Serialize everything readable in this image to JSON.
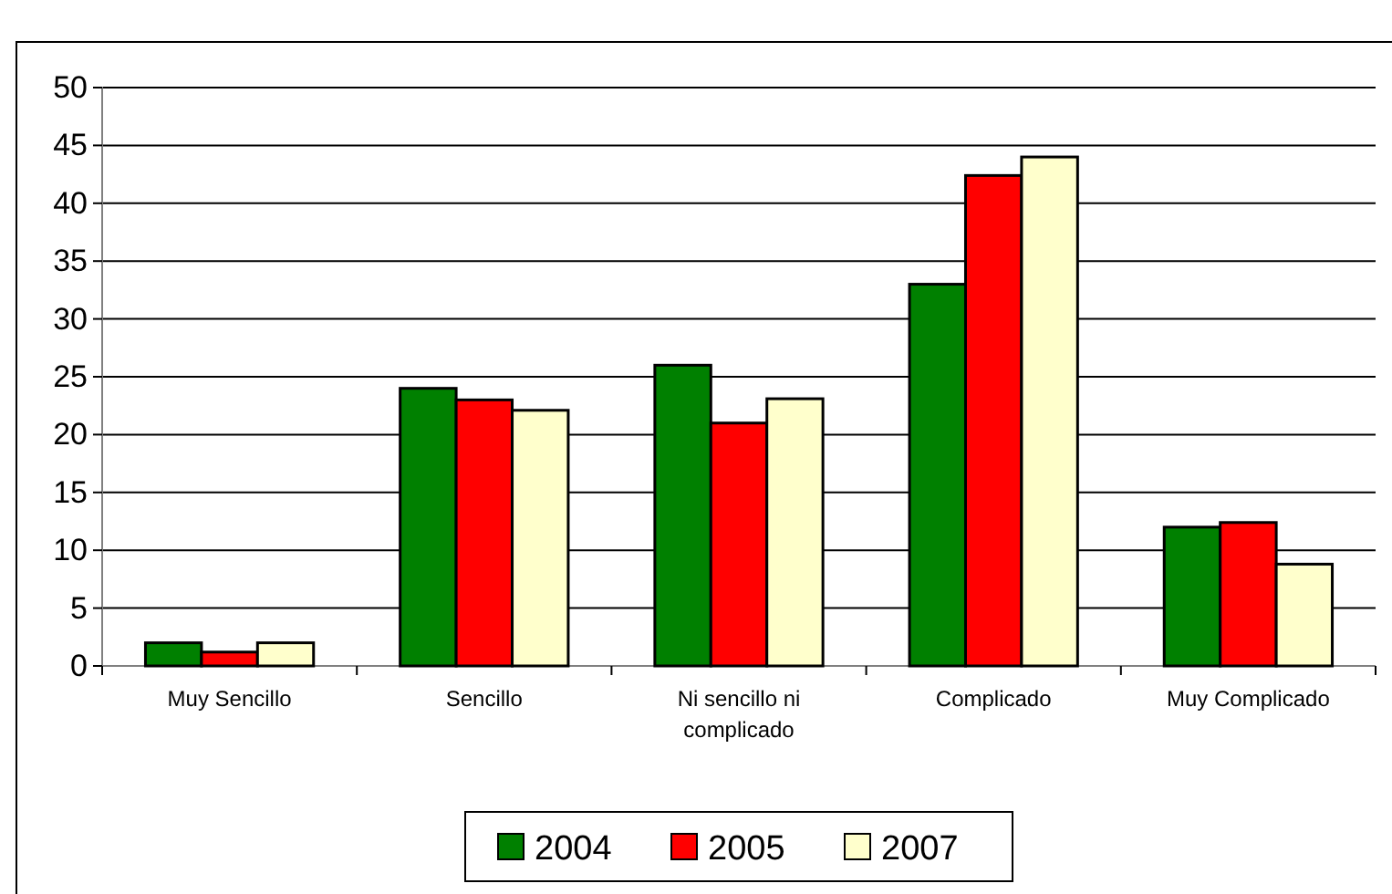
{
  "chart_data": {
    "type": "bar",
    "categories": [
      "Muy Sencillo",
      "Sencillo",
      "Ni sencillo ni complicado",
      "Complicado",
      "Muy Complicado"
    ],
    "series": [
      {
        "name": "2004",
        "color": "#008000",
        "values": [
          2,
          24,
          26,
          33,
          12
        ]
      },
      {
        "name": "2005",
        "color": "#ff0000",
        "values": [
          1.2,
          23,
          21,
          42.4,
          12.4
        ]
      },
      {
        "name": "2007",
        "color": "#ffffcc",
        "values": [
          2,
          22.1,
          23.1,
          44,
          8.8
        ]
      }
    ],
    "ylim": [
      0,
      50
    ],
    "yticks": [
      0,
      5,
      10,
      15,
      20,
      25,
      30,
      35,
      40,
      45,
      50
    ],
    "grid": "y",
    "legend": "bottom"
  }
}
